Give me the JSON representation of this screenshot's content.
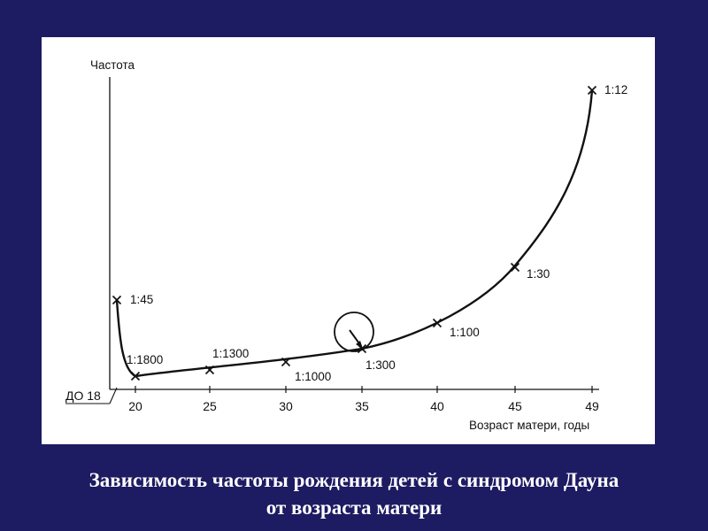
{
  "slide": {
    "caption_line1": "Зависимость частоты рождения детей с синдромом Дауна",
    "caption_line2": "от  возраста матери",
    "background_color": "#1d1b62",
    "panel_color": "#ffffff"
  },
  "chart_data": {
    "type": "line",
    "ylabel": "Частота",
    "xlabel": "Возраст матери, годы",
    "x_ticks": [
      "ДО 18",
      "20",
      "25",
      "30",
      "35",
      "40",
      "45",
      "49"
    ],
    "series": [
      {
        "points": [
          {
            "age": "ДО 18",
            "frequency": "1:45"
          },
          {
            "age": "20",
            "frequency": "1:1800"
          },
          {
            "age": "25",
            "frequency": "1:1300"
          },
          {
            "age": "30",
            "frequency": "1:1000"
          },
          {
            "age": "35",
            "frequency": "1:300"
          },
          {
            "age": "40",
            "frequency": "1:100"
          },
          {
            "age": "45",
            "frequency": "1:30"
          },
          {
            "age": "49",
            "frequency": "1:12"
          }
        ]
      }
    ],
    "highlight": {
      "age": "35",
      "frequency": "1:300",
      "marker": "circle-with-arrow"
    },
    "grid": false,
    "legend": "none"
  }
}
